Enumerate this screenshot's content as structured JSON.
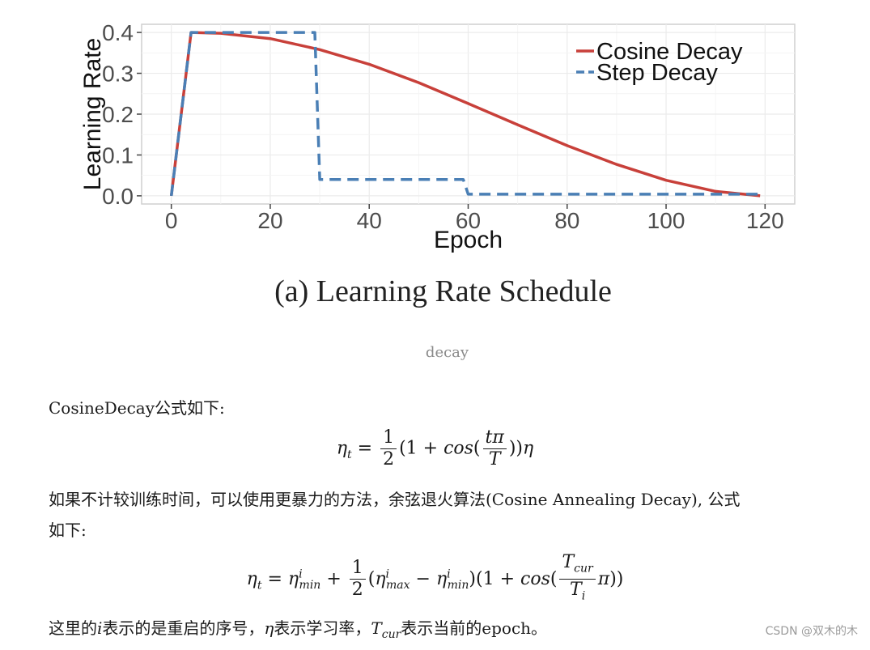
{
  "chart_data": {
    "type": "line",
    "xlabel": "Epoch",
    "ylabel": "Learning Rate",
    "xlim": [
      -6,
      126
    ],
    "ylim": [
      -0.02,
      0.42
    ],
    "x_ticks": [
      0,
      20,
      40,
      60,
      80,
      100,
      120
    ],
    "y_ticks": [
      "0.0",
      "0.1",
      "0.2",
      "0.3",
      "0.4"
    ],
    "grid": true,
    "legend_position": "top-right",
    "series": [
      {
        "name": "Cosine Decay",
        "color": "#c8403a",
        "style": "solid",
        "x": [
          0,
          4,
          10,
          20,
          30,
          40,
          50,
          60,
          70,
          80,
          90,
          100,
          110,
          119
        ],
        "y": [
          0.0,
          0.4,
          0.398,
          0.385,
          0.358,
          0.322,
          0.277,
          0.226,
          0.174,
          0.123,
          0.077,
          0.038,
          0.011,
          0.0
        ]
      },
      {
        "name": "Step Decay",
        "color": "#4a7fb5",
        "style": "dashed",
        "x": [
          0,
          4,
          29,
          30,
          59,
          60,
          119
        ],
        "y": [
          0.0,
          0.4,
          0.4,
          0.04,
          0.04,
          0.004,
          0.004
        ]
      }
    ]
  },
  "figure": {
    "caption": "(a) Learning Rate Schedule"
  },
  "image_caption": "decay",
  "paragraphs": {
    "p1": "CosineDecay公式如下:",
    "p2_line1": "如果不计较训练时间，可以使用更暴力的方法，余弦退火算法(Cosine Annealing Decay), 公式",
    "p2_line2": "如下:",
    "p3_a": "这里的",
    "p3_b": "表示的是重启的序号，",
    "p3_c": "表示学习率，",
    "p3_d": "表示当前的epoch。"
  },
  "watermark": "CSDN @双木的木"
}
